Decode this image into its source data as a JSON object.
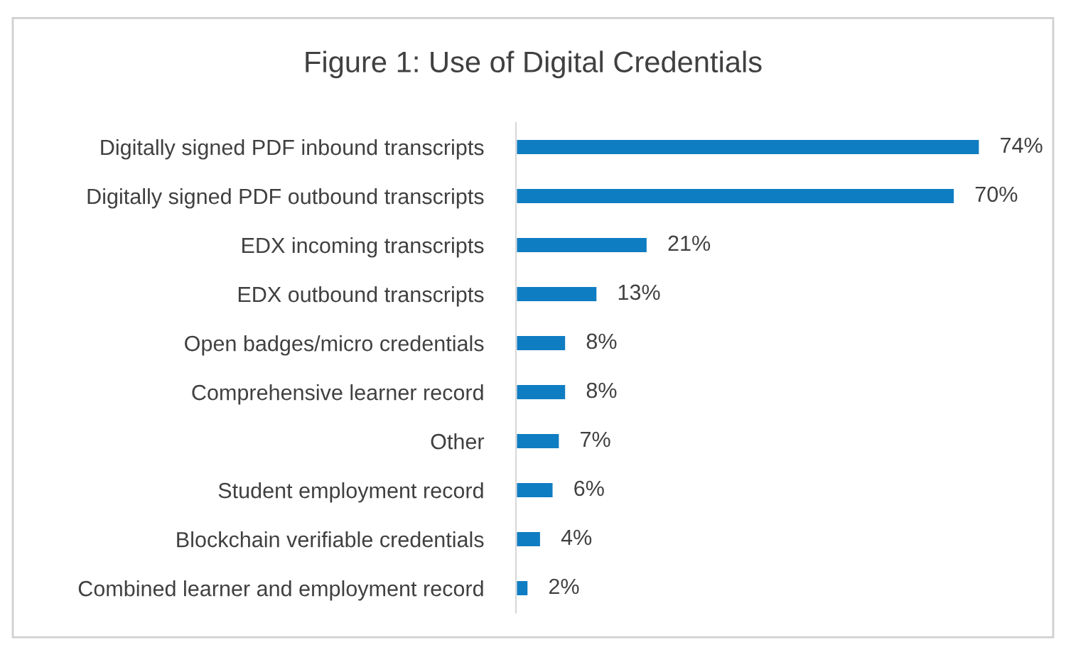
{
  "chart_data": {
    "type": "bar",
    "orientation": "horizontal",
    "title": "Figure 1: Use of Digital Credentials",
    "categories": [
      "Digitally signed PDF inbound transcripts",
      "Digitally signed PDF outbound transcripts",
      "EDX incoming transcripts",
      "EDX outbound transcripts",
      "Open badges/micro credentials",
      "Comprehensive learner record",
      "Other",
      "Student employment record",
      "Blockchain verifiable credentials",
      "Combined learner and employment record"
    ],
    "values": [
      74,
      70,
      21,
      13,
      8,
      8,
      7,
      6,
      4,
      2
    ],
    "value_labels": [
      "74%",
      "70%",
      "21%",
      "13%",
      "8%",
      "8%",
      "7%",
      "6%",
      "4%",
      "2%"
    ],
    "color": "#0f7dc2",
    "grid": false,
    "legend": false
  }
}
